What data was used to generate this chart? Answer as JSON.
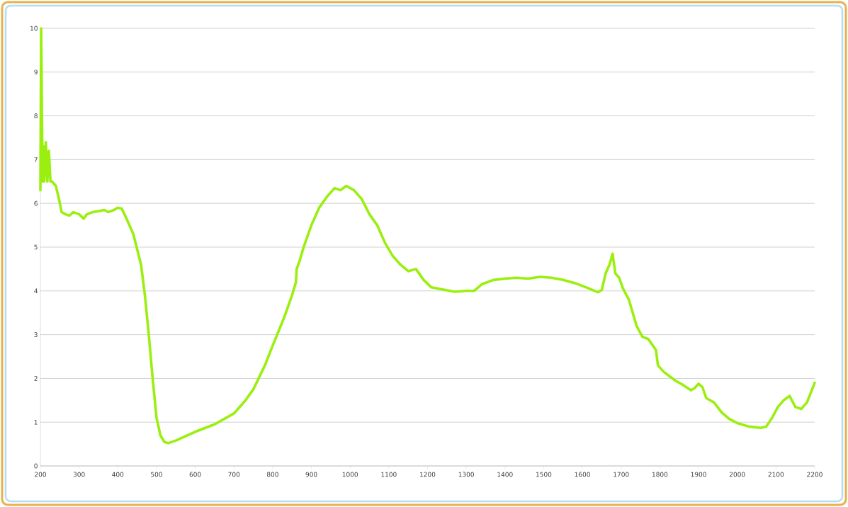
{
  "chart_data": {
    "type": "line",
    "x": [
      200,
      202,
      204,
      206,
      208,
      210,
      214,
      218,
      222,
      226,
      230,
      240,
      248,
      255,
      265,
      275,
      285,
      300,
      312,
      320,
      335,
      350,
      365,
      375,
      390,
      400,
      410,
      420,
      440,
      460,
      470,
      480,
      490,
      500,
      510,
      520,
      530,
      550,
      600,
      650,
      700,
      730,
      750,
      780,
      800,
      830,
      850,
      860,
      862,
      870,
      880,
      900,
      920,
      940,
      960,
      975,
      990,
      1010,
      1030,
      1050,
      1070,
      1090,
      1110,
      1130,
      1150,
      1170,
      1190,
      1210,
      1240,
      1270,
      1300,
      1320,
      1340,
      1370,
      1400,
      1430,
      1460,
      1490,
      1520,
      1550,
      1580,
      1610,
      1640,
      1650,
      1660,
      1670,
      1678,
      1685,
      1695,
      1705,
      1720,
      1740,
      1755,
      1770,
      1790,
      1795,
      1810,
      1840,
      1860,
      1880,
      1890,
      1900,
      1910,
      1920,
      1940,
      1960,
      1980,
      2000,
      2030,
      2060,
      2075,
      2090,
      2105,
      2120,
      2135,
      2150,
      2165,
      2180,
      2200
    ],
    "series": [
      {
        "color": "#9aef0e",
        "values": [
          6.3,
          10.0,
          8.0,
          6.5,
          7.3,
          6.5,
          7.4,
          6.5,
          7.2,
          6.5,
          6.5,
          6.4,
          6.1,
          5.8,
          5.75,
          5.72,
          5.8,
          5.75,
          5.65,
          5.75,
          5.8,
          5.82,
          5.85,
          5.8,
          5.85,
          5.9,
          5.88,
          5.7,
          5.3,
          4.6,
          3.9,
          3.0,
          2.0,
          1.1,
          0.7,
          0.55,
          0.52,
          0.58,
          0.78,
          0.95,
          1.2,
          1.5,
          1.75,
          2.3,
          2.75,
          3.4,
          3.9,
          4.2,
          4.5,
          4.7,
          5.0,
          5.5,
          5.9,
          6.15,
          6.35,
          6.3,
          6.4,
          6.3,
          6.1,
          5.75,
          5.5,
          5.1,
          4.8,
          4.6,
          4.45,
          4.5,
          4.25,
          4.08,
          4.03,
          3.98,
          4.0,
          4.0,
          4.15,
          4.25,
          4.28,
          4.3,
          4.28,
          4.32,
          4.3,
          4.25,
          4.18,
          4.08,
          3.97,
          4.02,
          4.4,
          4.6,
          4.85,
          4.4,
          4.3,
          4.05,
          3.8,
          3.2,
          2.95,
          2.9,
          2.65,
          2.3,
          2.15,
          1.95,
          1.85,
          1.73,
          1.78,
          1.88,
          1.8,
          1.55,
          1.45,
          1.22,
          1.07,
          0.98,
          0.9,
          0.87,
          0.9,
          1.1,
          1.35,
          1.5,
          1.6,
          1.35,
          1.3,
          1.45,
          1.9
        ]
      }
    ],
    "xlim": [
      200,
      2200
    ],
    "ylim": [
      0,
      10
    ],
    "xticks": [
      200,
      300,
      400,
      500,
      600,
      700,
      800,
      900,
      1000,
      1100,
      1200,
      1300,
      1400,
      1500,
      1600,
      1700,
      1800,
      1900,
      2000,
      2100,
      2200
    ],
    "yticks": [
      0,
      1,
      2,
      3,
      4,
      5,
      6,
      7,
      8,
      9,
      10
    ],
    "grid": "y",
    "line_style": "solid",
    "marker": "none"
  }
}
